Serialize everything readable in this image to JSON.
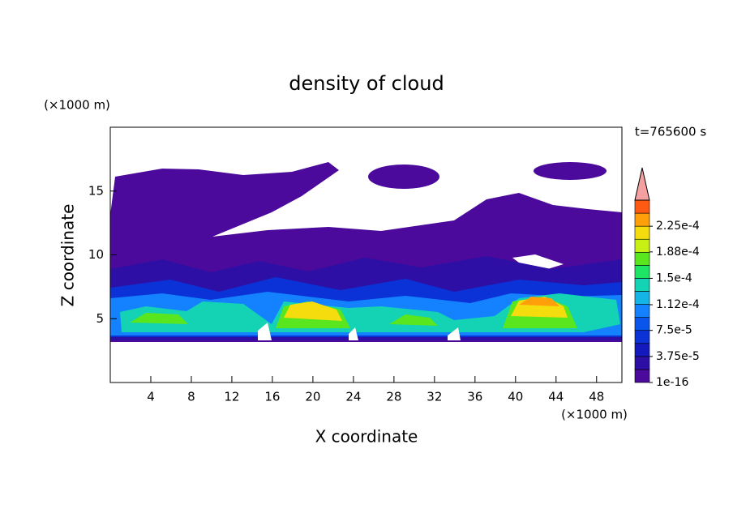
{
  "chart_data": {
    "type": "contour",
    "title": "density of cloud",
    "x_label": "X coordinate",
    "y_label": "Z coordinate",
    "x_unit": "(×1000 m)",
    "y_unit": "(×1000 m)",
    "annotation": "t=765600 s",
    "xlim": [
      0,
      50.5
    ],
    "ylim": [
      0,
      20
    ],
    "xticks": [
      4,
      8,
      12,
      16,
      20,
      24,
      28,
      32,
      36,
      40,
      44,
      48
    ],
    "yticks": [
      5,
      10,
      15
    ],
    "colorbar": {
      "levels": [
        1e-16,
        1.875e-05,
        3.75e-05,
        5.625e-05,
        7.5e-05,
        9.375e-05,
        0.0001125,
        0.00013125,
        0.00015,
        0.00016875,
        0.0001875,
        0.00020625,
        0.000225,
        0.00024375,
        0.0002625
      ],
      "colors": [
        "#4b0a9b",
        "#2d0fa5",
        "#1419be",
        "#0a32d7",
        "#0a55eb",
        "#1482ff",
        "#14b4e6",
        "#14d2b4",
        "#1ee664",
        "#5ae61e",
        "#c8f014",
        "#f5dc0f",
        "#ffa00a",
        "#ff5a14"
      ],
      "extend_color": "#f5a0a0",
      "ticks": [
        {
          "value": 1e-16,
          "label": "1e-16"
        },
        {
          "value": 3.75e-05,
          "label": "3.75e-5"
        },
        {
          "value": 7.5e-05,
          "label": "7.5e-5"
        },
        {
          "value": 0.000112,
          "label": "1.12e-4"
        },
        {
          "value": 0.00015,
          "label": "1.5e-4"
        },
        {
          "value": 0.000188,
          "label": "1.88e-4"
        },
        {
          "value": 0.000225,
          "label": "2.25e-4"
        }
      ]
    }
  }
}
